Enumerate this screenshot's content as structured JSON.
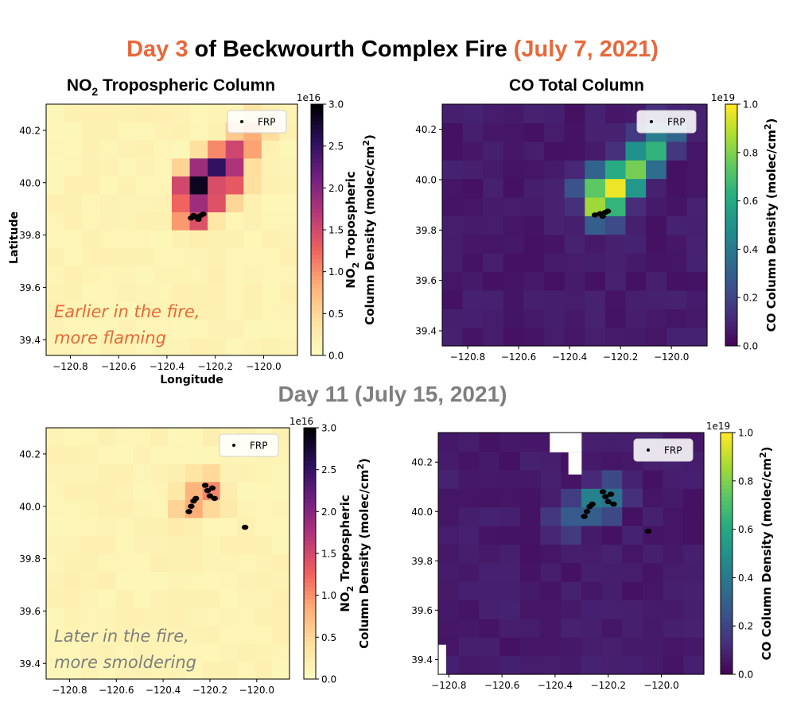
{
  "titles": {
    "main_day": "Day 3",
    "main_mid": "of Beckwourth Complex Fire",
    "main_date": "(July 7, 2021)",
    "day11": "Day 11 (July 15, 2021)"
  },
  "colors": {
    "title_orange": "#e8683a",
    "title_gray": "#7f7f7f",
    "annot_day3": "#e8683a",
    "annot_day11": "#7f7f7f",
    "frp_marker": "#000000"
  },
  "chart_data": [
    {
      "id": "no2-day3",
      "type": "heatmap",
      "title": "NO₂ Tropospheric Column",
      "title_main": "NO",
      "title_sub": "2",
      "title_rest": " Tropospheric Column",
      "xlabel": "Longitude",
      "ylabel": "Latitude",
      "xlim": [
        -120.9,
        -119.86
      ],
      "ylim": [
        39.34,
        40.3
      ],
      "xticks": [
        -120.8,
        -120.6,
        -120.4,
        -120.2,
        -120.0
      ],
      "xtick_labels": [
        "−120.8",
        "−120.6",
        "−120.4",
        "−120.2",
        "−120.0"
      ],
      "yticks": [
        39.4,
        39.6,
        39.8,
        40.0,
        40.2
      ],
      "ytick_labels": [
        "39.4",
        "39.6",
        "39.8",
        "40.0",
        "40.2"
      ],
      "colormap": "magma_r",
      "colorbar": {
        "min": 0.0,
        "max": 3.0,
        "exponent": "1e16",
        "ticks": [
          0.0,
          0.5,
          1.0,
          1.5,
          2.0,
          2.5,
          3.0
        ],
        "tick_labels": [
          "0.0",
          "0.5",
          "1.0",
          "1.5",
          "2.0",
          "2.5",
          "3.0"
        ],
        "label_line1_main": "NO",
        "label_line1_sub": "2",
        "label_line1_rest": " Tropospheric",
        "label_line2": "Column Density (molec/cm",
        "label_line2_sup": "2",
        "label_line2_end": ")"
      },
      "legend": {
        "label": "FRP",
        "loc": "upper right"
      },
      "annotation": {
        "line1": "Earlier in the fire,",
        "line2": "more flaming"
      },
      "plume": [
        {
          "lon": -120.28,
          "lat": 39.98,
          "value": 3.0
        },
        {
          "lon": -120.24,
          "lat": 40.03,
          "value": 2.5
        },
        {
          "lon": -120.19,
          "lat": 40.05,
          "value": 2.6
        },
        {
          "lon": -120.15,
          "lat": 40.08,
          "value": 2.2
        },
        {
          "lon": -120.11,
          "lat": 40.12,
          "value": 1.6
        },
        {
          "lon": -120.07,
          "lat": 40.16,
          "value": 1.2
        },
        {
          "lon": -120.03,
          "lat": 40.2,
          "value": 0.8
        },
        {
          "lon": -120.29,
          "lat": 39.9,
          "value": 2.2
        },
        {
          "lon": -120.22,
          "lat": 39.95,
          "value": 1.8
        },
        {
          "lon": -120.13,
          "lat": 40.0,
          "value": 1.4
        }
      ],
      "frp_points": [
        {
          "lon": -120.28,
          "lat": 39.87
        },
        {
          "lon": -120.3,
          "lat": 39.865
        },
        {
          "lon": -120.26,
          "lat": 39.875
        },
        {
          "lon": -120.27,
          "lat": 39.86
        },
        {
          "lon": -120.29,
          "lat": 39.875
        },
        {
          "lon": -120.25,
          "lat": 39.88
        }
      ]
    },
    {
      "id": "co-day3",
      "type": "heatmap",
      "title": "CO Total Column",
      "xlim": [
        -120.9,
        -119.86
      ],
      "ylim": [
        39.34,
        40.3
      ],
      "xticks": [
        -120.8,
        -120.6,
        -120.4,
        -120.2,
        -120.0
      ],
      "xtick_labels": [
        "−120.8",
        "−120.6",
        "−120.4",
        "−120.2",
        "−120.0"
      ],
      "yticks": [
        39.4,
        39.6,
        39.8,
        40.0,
        40.2
      ],
      "ytick_labels": [
        "39.4",
        "39.6",
        "39.8",
        "40.0",
        "40.2"
      ],
      "colormap": "viridis",
      "colorbar": {
        "min": 0.0,
        "max": 1.0,
        "exponent": "1e19",
        "ticks": [
          0.0,
          0.2,
          0.4,
          0.6,
          0.8,
          1.0
        ],
        "tick_labels": [
          "0.0",
          "0.2",
          "0.4",
          "0.6",
          "0.8",
          "1.0"
        ],
        "label": "CO Column Density (molec/cm",
        "label_sup": "2",
        "label_end": ")"
      },
      "legend": {
        "label": "FRP",
        "loc": "upper right"
      },
      "plume": [
        {
          "lon": -120.27,
          "lat": 39.9,
          "value": 1.0
        },
        {
          "lon": -120.23,
          "lat": 39.96,
          "value": 1.0
        },
        {
          "lon": -120.19,
          "lat": 40.0,
          "value": 0.95
        },
        {
          "lon": -120.13,
          "lat": 40.06,
          "value": 0.85
        },
        {
          "lon": -120.08,
          "lat": 40.12,
          "value": 0.7
        },
        {
          "lon": -120.03,
          "lat": 40.18,
          "value": 0.5
        },
        {
          "lon": -120.3,
          "lat": 39.97,
          "value": 0.75
        }
      ],
      "frp_points": [
        {
          "lon": -120.28,
          "lat": 39.865
        },
        {
          "lon": -120.3,
          "lat": 39.86
        },
        {
          "lon": -120.26,
          "lat": 39.87
        },
        {
          "lon": -120.27,
          "lat": 39.855
        },
        {
          "lon": -120.25,
          "lat": 39.875
        }
      ]
    },
    {
      "id": "no2-day11",
      "type": "heatmap",
      "xlim": [
        -120.9,
        -119.86
      ],
      "ylim": [
        39.34,
        40.3
      ],
      "xticks": [
        -120.8,
        -120.6,
        -120.4,
        -120.2,
        -120.0
      ],
      "xtick_labels": [
        "−120.8",
        "−120.6",
        "−120.4",
        "−120.2",
        "−120.0"
      ],
      "yticks": [
        39.4,
        39.6,
        39.8,
        40.0,
        40.2
      ],
      "ytick_labels": [
        "39.4",
        "39.6",
        "39.8",
        "40.0",
        "40.2"
      ],
      "colormap": "magma_r",
      "colorbar": {
        "min": 0.0,
        "max": 3.0,
        "exponent": "1e16",
        "ticks": [
          0.0,
          0.5,
          1.0,
          1.5,
          2.0,
          2.5,
          3.0
        ],
        "tick_labels": [
          "0.0",
          "0.5",
          "1.0",
          "1.5",
          "2.0",
          "2.5",
          "3.0"
        ],
        "label_line1_main": "NO",
        "label_line1_sub": "2",
        "label_line1_rest": " Tropospheric",
        "label_line2": "Column Density (molec/cm",
        "label_line2_sup": "2",
        "label_line2_end": ")"
      },
      "legend": {
        "label": "FRP",
        "loc": "upper right"
      },
      "annotation": {
        "line1": "Later in the fire,",
        "line2": "more smoldering"
      },
      "plume": [
        {
          "lon": -120.22,
          "lat": 40.06,
          "value": 1.2
        },
        {
          "lon": -120.27,
          "lat": 40.02,
          "value": 1.0
        },
        {
          "lon": -120.32,
          "lat": 39.99,
          "value": 0.6
        },
        {
          "lon": -120.17,
          "lat": 40.02,
          "value": 0.5
        }
      ],
      "frp_points": [
        {
          "lon": -120.26,
          "lat": 40.03
        },
        {
          "lon": -120.28,
          "lat": 40.0
        },
        {
          "lon": -120.27,
          "lat": 40.02
        },
        {
          "lon": -120.29,
          "lat": 39.98
        },
        {
          "lon": -120.21,
          "lat": 40.06
        },
        {
          "lon": -120.19,
          "lat": 40.07
        },
        {
          "lon": -120.2,
          "lat": 40.04
        },
        {
          "lon": -120.18,
          "lat": 40.03
        },
        {
          "lon": -120.22,
          "lat": 40.08
        },
        {
          "lon": -120.05,
          "lat": 39.92
        }
      ]
    },
    {
      "id": "co-day11",
      "type": "heatmap",
      "xlim": [
        -120.84,
        -119.84
      ],
      "ylim": [
        39.34,
        40.32
      ],
      "xticks": [
        -120.8,
        -120.6,
        -120.4,
        -120.2,
        -120.0
      ],
      "xtick_labels": [
        "−120.8",
        "−120.6",
        "−120.4",
        "−120.2",
        "−120.0"
      ],
      "yticks": [
        39.4,
        39.6,
        39.8,
        40.0,
        40.2
      ],
      "ytick_labels": [
        "39.4",
        "39.6",
        "39.8",
        "40.0",
        "40.2"
      ],
      "colormap": "viridis",
      "colorbar": {
        "min": 0.0,
        "max": 1.0,
        "exponent": "1e19",
        "ticks": [
          0.0,
          0.2,
          0.4,
          0.6,
          0.8,
          1.0
        ],
        "tick_labels": [
          "0.0",
          "0.2",
          "0.4",
          "0.6",
          "0.8",
          "1.0"
        ],
        "label": "CO Column Density (molec/cm",
        "label_sup": "2",
        "label_end": ")"
      },
      "legend": {
        "label": "FRP",
        "loc": "upper right"
      },
      "plume": [
        {
          "lon": -120.23,
          "lat": 40.04,
          "value": 0.55
        },
        {
          "lon": -120.3,
          "lat": 40.0,
          "value": 0.4
        },
        {
          "lon": -120.36,
          "lat": 39.96,
          "value": 0.3
        },
        {
          "lon": -120.18,
          "lat": 40.08,
          "value": 0.35
        }
      ],
      "missing_cells": [
        {
          "lon": [
            -120.42,
            -120.3
          ],
          "lat": [
            40.24,
            40.32
          ]
        },
        {
          "lon": [
            -120.35,
            -120.3
          ],
          "lat": [
            40.15,
            40.24
          ]
        },
        {
          "lon": [
            -120.84,
            -120.81
          ],
          "lat": [
            39.34,
            39.46
          ]
        }
      ],
      "frp_points": [
        {
          "lon": -120.26,
          "lat": 40.03
        },
        {
          "lon": -120.28,
          "lat": 40.0
        },
        {
          "lon": -120.27,
          "lat": 40.02
        },
        {
          "lon": -120.29,
          "lat": 39.98
        },
        {
          "lon": -120.21,
          "lat": 40.06
        },
        {
          "lon": -120.19,
          "lat": 40.07
        },
        {
          "lon": -120.2,
          "lat": 40.04
        },
        {
          "lon": -120.18,
          "lat": 40.03
        },
        {
          "lon": -120.22,
          "lat": 40.08
        },
        {
          "lon": -120.05,
          "lat": 39.92
        }
      ]
    }
  ]
}
